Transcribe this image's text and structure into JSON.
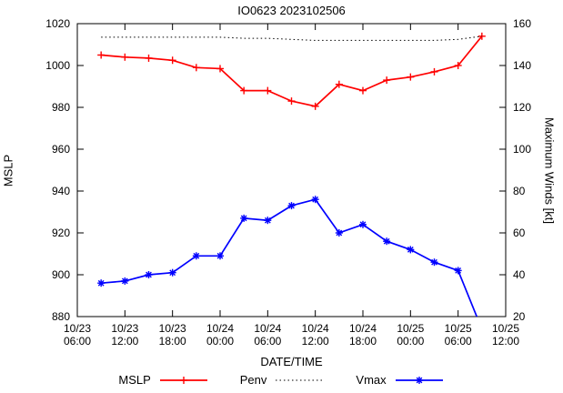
{
  "title": "IO0623 2023102506",
  "axes": {
    "y_left_label": "MSLP",
    "y_right_label": "Maximum Winds [kt]",
    "x_label": "DATE/TIME"
  },
  "colors": {
    "mslp": "#ff0000",
    "penv": "#000000",
    "vmax": "#0000ff",
    "frame": "#000000"
  },
  "chart_data": {
    "type": "line",
    "title": "IO0623 2023102506",
    "xlabel": "DATE/TIME",
    "ylabel_left": "MSLP",
    "ylabel_right": "Maximum Winds [kt]",
    "grid": false,
    "legend_position": "bottom-center",
    "x_lim_hours": [
      0,
      54
    ],
    "x_ticks": [
      {
        "hour": 0,
        "date": "10/23",
        "time": "06:00"
      },
      {
        "hour": 6,
        "date": "10/23",
        "time": "12:00"
      },
      {
        "hour": 12,
        "date": "10/23",
        "time": "18:00"
      },
      {
        "hour": 18,
        "date": "10/24",
        "time": "00:00"
      },
      {
        "hour": 24,
        "date": "10/24",
        "time": "06:00"
      },
      {
        "hour": 30,
        "date": "10/24",
        "time": "12:00"
      },
      {
        "hour": 36,
        "date": "10/24",
        "time": "18:00"
      },
      {
        "hour": 42,
        "date": "10/25",
        "time": "00:00"
      },
      {
        "hour": 48,
        "date": "10/25",
        "time": "06:00"
      },
      {
        "hour": 54,
        "date": "10/25",
        "time": "12:00"
      }
    ],
    "y_left": {
      "label": "MSLP",
      "lim": [
        880,
        1020
      ],
      "ticks": [
        880,
        900,
        920,
        940,
        960,
        980,
        1000,
        1020
      ]
    },
    "y_right": {
      "label": "Maximum Winds [kt]",
      "lim": [
        20,
        160
      ],
      "ticks": [
        20,
        40,
        60,
        80,
        100,
        120,
        140,
        160
      ]
    },
    "x_hours": [
      3,
      6,
      9,
      12,
      15,
      18,
      21,
      24,
      27,
      30,
      33,
      36,
      39,
      42,
      45,
      48,
      51
    ],
    "series": [
      {
        "name": "MSLP",
        "axis": "left",
        "color": "#ff0000",
        "linestyle": "solid",
        "marker": "plus",
        "values": [
          1005,
          1004,
          1003.5,
          1002.5,
          999,
          998.5,
          988,
          988,
          983,
          980.5,
          991,
          988,
          993,
          994.5,
          997,
          1000,
          1014
        ]
      },
      {
        "name": "Penv",
        "axis": "left",
        "color": "#000000",
        "linestyle": "dotted",
        "marker": "none",
        "values": [
          1013.5,
          1013.5,
          1013.5,
          1013.5,
          1013.5,
          1013.5,
          1013,
          1013,
          1012.5,
          1012,
          1012,
          1012,
          1012,
          1012,
          1012,
          1012.5,
          1014
        ]
      },
      {
        "name": "Vmax",
        "axis": "right",
        "color": "#0000ff",
        "linestyle": "solid",
        "marker": "asterisk",
        "values": [
          36,
          37,
          40,
          41,
          49,
          49,
          67,
          66,
          73,
          76,
          60,
          64,
          56,
          52,
          46,
          42,
          14
        ]
      }
    ]
  },
  "legend": [
    {
      "label": "MSLP",
      "color": "#ff0000",
      "dash": "solid",
      "marker": "plus"
    },
    {
      "label": "Penv",
      "color": "#000000",
      "dash": "dotted",
      "marker": "none"
    },
    {
      "label": "Vmax",
      "color": "#0000ff",
      "dash": "solid",
      "marker": "asterisk"
    }
  ]
}
